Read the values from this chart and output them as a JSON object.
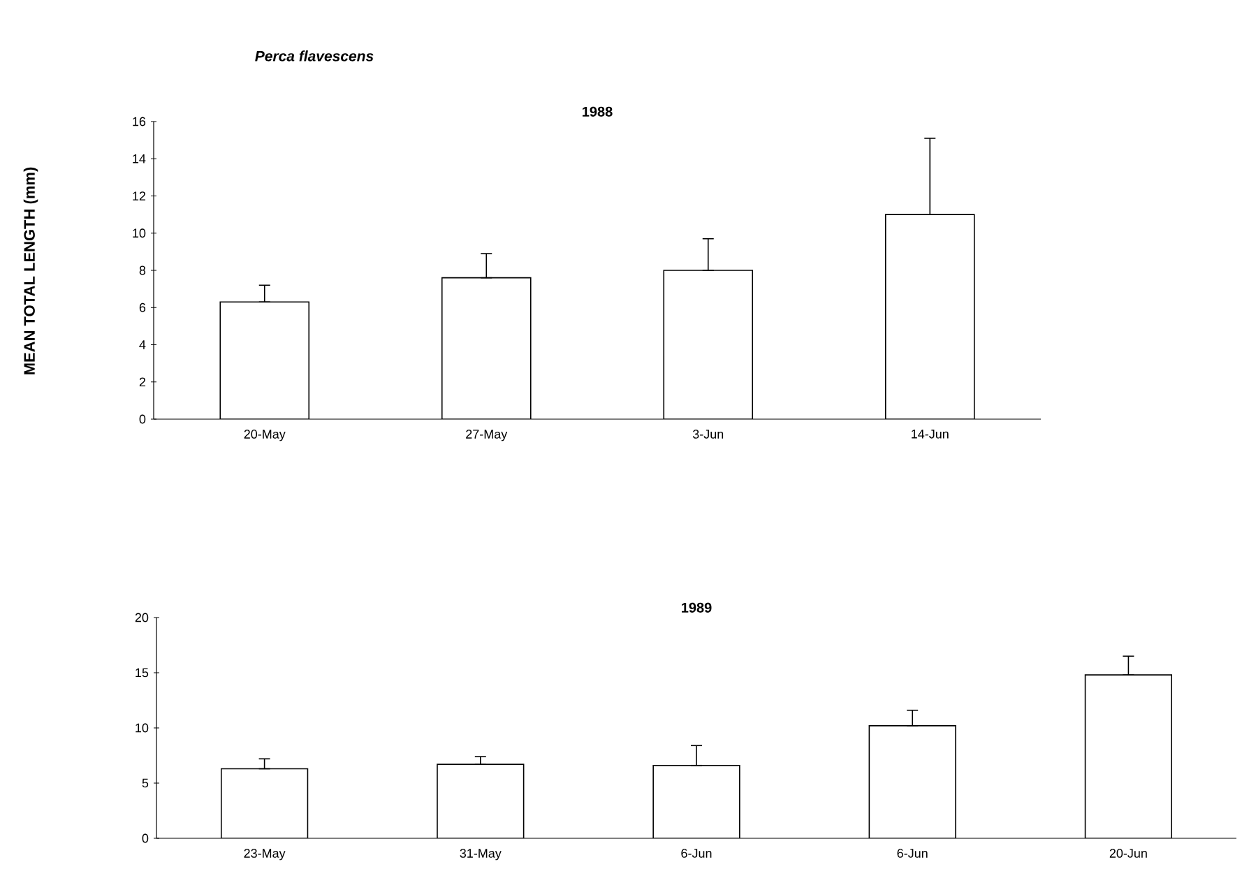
{
  "chart_data": [
    {
      "type": "bar",
      "title": "Perca flavescens",
      "subtitle": "1988",
      "ylabel": "MEAN TOTAL LENGTH (mm)",
      "categories": [
        "20-May",
        "27-May",
        "3-Jun",
        "14-Jun"
      ],
      "color": "#ffffff",
      "values": [
        6.3,
        7.6,
        8.0,
        11.0
      ],
      "errors": [
        [
          6.3,
          7.2
        ],
        [
          7.6,
          8.9
        ],
        [
          8.0,
          9.7
        ],
        [
          11.0,
          15.1
        ]
      ],
      "ylim": [
        0,
        16
      ],
      "yticks": [
        0,
        2,
        4,
        6,
        8,
        10,
        12,
        14,
        16
      ],
      "grid": false
    },
    {
      "type": "bar",
      "subtitle": "1989",
      "categories": [
        "23-May",
        "31-May",
        "6-Jun",
        "6-Jun",
        "20-Jun"
      ],
      "color": "#ffffff",
      "values": [
        6.3,
        6.7,
        6.6,
        10.2,
        14.8
      ],
      "errors": [
        [
          6.3,
          7.2
        ],
        [
          6.7,
          7.4
        ],
        [
          6.6,
          8.4
        ],
        [
          10.2,
          11.6
        ],
        [
          14.8,
          16.5
        ]
      ],
      "ylim": [
        0,
        20
      ],
      "yticks": [
        0,
        5,
        10,
        15,
        20
      ],
      "grid": false
    }
  ]
}
